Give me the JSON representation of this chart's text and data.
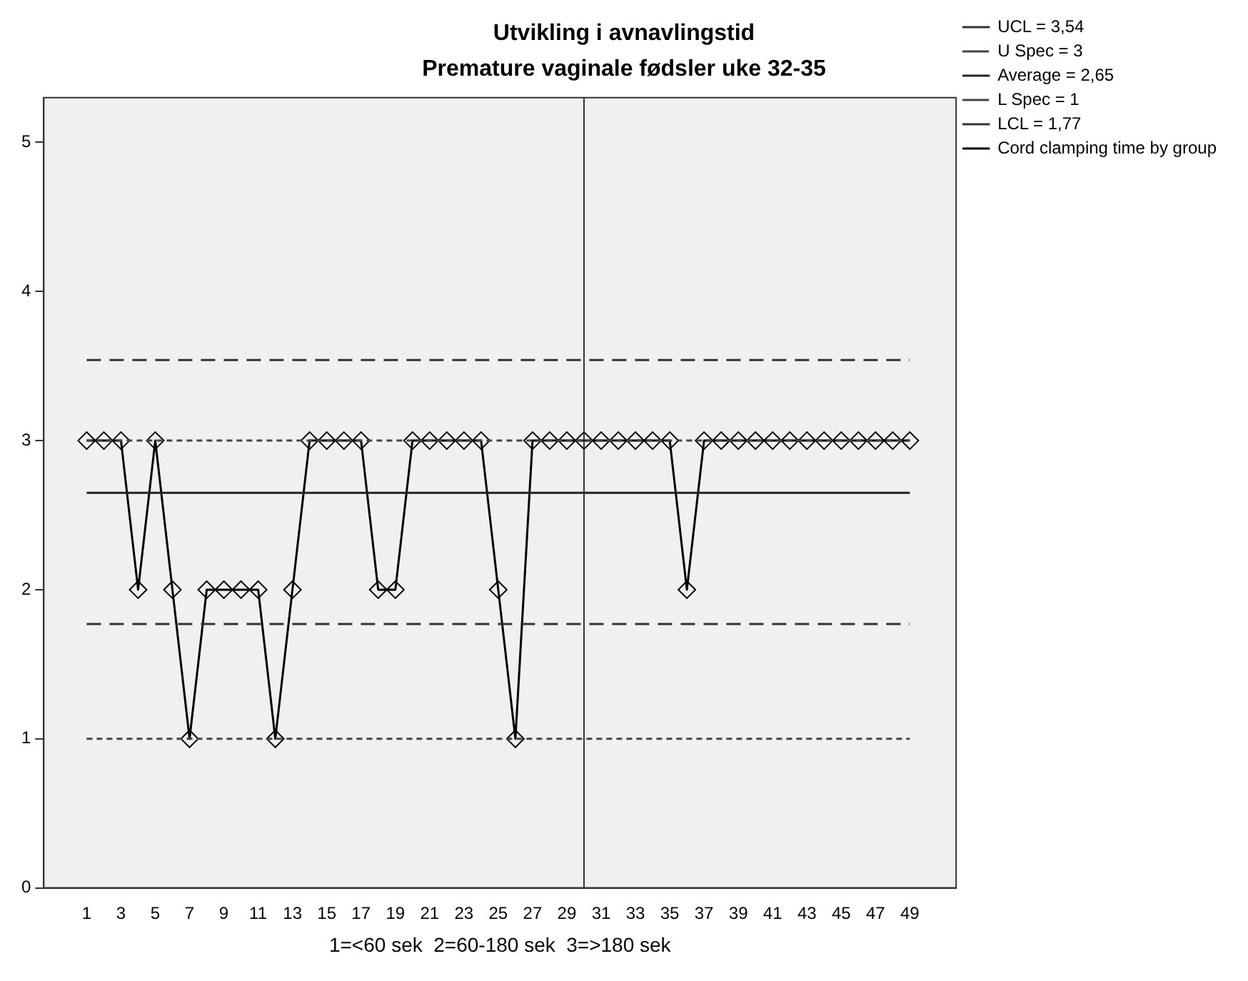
{
  "chart_data": {
    "type": "line",
    "title": "Utvikling i avnavlingstid",
    "subtitle": "Premature vaginale fødsler uke 32-35",
    "xlabel": "1=<60 sek  2=60-180 sek  3=>180 sek",
    "xlim": [
      -1.5,
      51.7
    ],
    "xticks": [
      1,
      3,
      5,
      7,
      9,
      11,
      13,
      15,
      17,
      19,
      21,
      23,
      25,
      27,
      29,
      31,
      33,
      35,
      37,
      39,
      41,
      43,
      45,
      47,
      49
    ],
    "ylim": [
      0,
      5.3
    ],
    "yticks": [
      0,
      1,
      2,
      3,
      4,
      5
    ],
    "grid": false,
    "legend": "top right",
    "series": [
      {
        "name": "Cord clamping time by group",
        "color": "#000000",
        "marker": "diamond",
        "line_style": "solid",
        "x": [
          1,
          2,
          3,
          4,
          5,
          6,
          7,
          8,
          9,
          10,
          11,
          12,
          13,
          14,
          15,
          16,
          17,
          18,
          19,
          20,
          21,
          22,
          23,
          24,
          25,
          26,
          27,
          28,
          29,
          30,
          31,
          32,
          33,
          34,
          35,
          36,
          37,
          38,
          39,
          40,
          41,
          42,
          43,
          44,
          45,
          46,
          47,
          48,
          49
        ],
        "values": [
          3,
          3,
          3,
          2,
          3,
          2,
          1,
          2,
          2,
          2,
          2,
          1,
          2,
          3,
          3,
          3,
          3,
          2,
          2,
          3,
          3,
          3,
          3,
          3,
          2,
          1,
          3,
          3,
          3,
          3,
          3,
          3,
          3,
          3,
          3,
          2,
          3,
          3,
          3,
          3,
          3,
          3,
          3,
          3,
          3,
          3,
          3,
          3,
          3
        ]
      },
      {
        "name": "UCL = 3,54",
        "color": "#333333",
        "marker": "none",
        "line_style": "dashed",
        "x": [
          1,
          49
        ],
        "values": [
          3.54,
          3.54
        ]
      },
      {
        "name": "U Spec = 3",
        "color": "#444444",
        "marker": "none",
        "line_style": "dotted",
        "x": [
          1,
          49
        ],
        "values": [
          3,
          3
        ]
      },
      {
        "name": "Average = 2,65",
        "color": "#222222",
        "marker": "none",
        "line_style": "solid",
        "x": [
          1,
          49
        ],
        "values": [
          2.65,
          2.65
        ]
      },
      {
        "name": "L Spec = 1",
        "color": "#444444",
        "marker": "none",
        "line_style": "dotted",
        "x": [
          1,
          49
        ],
        "values": [
          1,
          1
        ]
      },
      {
        "name": "LCL = 1,77",
        "color": "#333333",
        "marker": "none",
        "line_style": "dashed",
        "x": [
          1,
          49
        ],
        "values": [
          1.77,
          1.77
        ]
      }
    ],
    "ref_lines": [
      {
        "axis": "x",
        "value": 30,
        "color": "#333333"
      }
    ]
  }
}
